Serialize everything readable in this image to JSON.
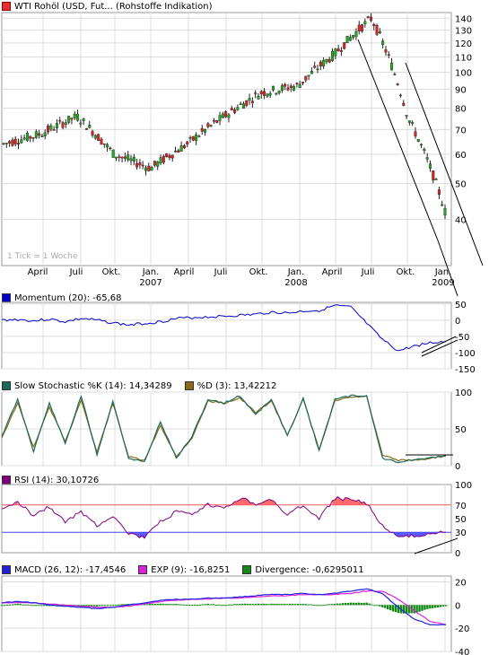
{
  "price_panel": {
    "title": "WTI Rohöl (USD, Fut... (Rohstoffe Indikation)",
    "title_color": "#e03030",
    "note": "1 Tick = 1 Woche",
    "y_ticks": [
      "140",
      "130",
      "120",
      "110",
      "100",
      "90",
      "80",
      "70",
      "60",
      "50",
      "40"
    ],
    "x_month_labels": [
      "April",
      "Juli",
      "Okt.",
      "Jan.",
      "April",
      "Juli",
      "Okt.",
      "Jan.",
      "April",
      "Juli",
      "Okt.",
      "Jan."
    ],
    "x_year_labels": [
      "2007",
      "2008",
      "2009"
    ]
  },
  "momentum_panel": {
    "label": "Momentum (20): -65,68",
    "color": "#0000cc",
    "y_ticks": [
      "50",
      "0",
      "-50",
      "-100",
      "-150"
    ]
  },
  "stochastic_panel": {
    "k_label": "Slow Stochastic %K (14): 14,34289",
    "k_color": "#1a6a5a",
    "d_label": "%D (3): 13,42212",
    "d_color": "#8a6a1a",
    "y_ticks": [
      "100",
      "50",
      "0"
    ]
  },
  "rsi_panel": {
    "label": "RSI (14): 30,10726",
    "color": "#800080",
    "y_ticks": [
      "100",
      "70",
      "50",
      "30",
      "0"
    ],
    "upper_level": 70,
    "lower_level": 30,
    "upper_color": "#ff5555",
    "lower_color": "#4444ff"
  },
  "macd_panel": {
    "macd_label": "MACD (26, 12): -17,4546",
    "macd_color": "#2222dd",
    "exp_label": "EXP (9): -16,8251",
    "exp_color": "#dd22dd",
    "div_label": "Divergence: -0,6295011",
    "div_color": "#118811",
    "y_ticks": [
      "20",
      "0",
      "-20",
      "-40"
    ]
  },
  "chart_data": [
    {
      "type": "candlestick",
      "title": "WTI Rohöl (USD, Fut... (Rohstoffe Indikation)",
      "xlabel": "",
      "ylabel": "",
      "ylim": [
        30,
        145
      ],
      "y_scale": "log",
      "x": [
        "2006-02",
        "2006-04",
        "2006-07",
        "2006-10",
        "2007-01",
        "2007-04",
        "2007-07",
        "2007-10",
        "2008-01",
        "2008-04",
        "2008-07",
        "2008-10",
        "2009-01"
      ],
      "values": [
        64,
        68,
        76,
        60,
        55,
        64,
        76,
        88,
        92,
        112,
        140,
        75,
        42
      ],
      "trend_lines": [
        {
          "from": [
            "2008-07",
            140
          ],
          "to": [
            "2009-01",
            28
          ]
        },
        {
          "from": [
            "2008-10",
            110
          ],
          "to": [
            "2009-03",
            30
          ]
        }
      ]
    },
    {
      "type": "line",
      "title": "Momentum (20)",
      "ylim": [
        -150,
        55
      ],
      "series": [
        {
          "name": "Momentum (20)",
          "values": [
            0,
            2,
            -2,
            3,
            -5,
            5,
            0,
            -8,
            -15,
            -10,
            -5,
            5,
            8,
            10,
            12,
            15,
            18,
            25,
            22,
            28,
            30,
            45,
            40,
            -10,
            -60,
            -95,
            -80,
            -70,
            -66
          ]
        }
      ]
    },
    {
      "type": "line",
      "title": "Slow Stochastic",
      "ylim": [
        0,
        100
      ],
      "series": [
        {
          "name": "Slow Stochastic %K (14)",
          "values": [
            40,
            90,
            20,
            85,
            30,
            95,
            15,
            88,
            10,
            5,
            60,
            10,
            40,
            90,
            85,
            95,
            70,
            90,
            40,
            92,
            20,
            90,
            95,
            95,
            10,
            5,
            8,
            10,
            14
          ]
        },
        {
          "name": "%D (3)",
          "values": [
            38,
            85,
            25,
            80,
            32,
            90,
            18,
            85,
            12,
            7,
            55,
            12,
            38,
            88,
            85,
            92,
            72,
            88,
            42,
            90,
            22,
            88,
            93,
            94,
            14,
            7,
            8,
            10,
            13
          ]
        }
      ]
    },
    {
      "type": "line",
      "title": "RSI (14)",
      "ylim": [
        0,
        100
      ],
      "series": [
        {
          "name": "RSI (14)",
          "values": [
            62,
            75,
            55,
            68,
            45,
            60,
            40,
            55,
            28,
            22,
            45,
            60,
            55,
            70,
            65,
            80,
            72,
            78,
            55,
            70,
            50,
            80,
            78,
            72,
            40,
            22,
            25,
            28,
            30
          ]
        }
      ]
    },
    {
      "type": "line",
      "title": "MACD",
      "ylim": [
        -40,
        25
      ],
      "series": [
        {
          "name": "MACD (26, 12)",
          "values": [
            2,
            3,
            2,
            0,
            -1,
            -2,
            -3,
            -2,
            0,
            2,
            4,
            5,
            5,
            6,
            6,
            7,
            8,
            9,
            9,
            10,
            9,
            10,
            12,
            14,
            10,
            -2,
            -12,
            -17,
            -17
          ]
        },
        {
          "name": "EXP (9)",
          "values": [
            2,
            2,
            2,
            1,
            0,
            -1,
            -2,
            -2,
            -1,
            1,
            3,
            4,
            5,
            5,
            6,
            6,
            7,
            8,
            8,
            9,
            9,
            9,
            10,
            12,
            12,
            5,
            -5,
            -14,
            -17
          ]
        },
        {
          "name": "Divergence",
          "values": [
            0,
            1,
            0,
            -1,
            -1,
            -1,
            -1,
            0,
            1,
            1,
            1,
            1,
            0,
            1,
            0,
            1,
            1,
            1,
            1,
            1,
            0,
            1,
            2,
            2,
            -2,
            -7,
            -7,
            -3,
            -1
          ]
        }
      ]
    }
  ]
}
